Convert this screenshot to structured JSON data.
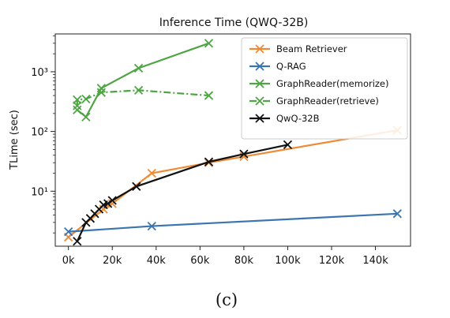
{
  "chart_data": {
    "type": "line",
    "title": "Inference Time (QWQ-32B)",
    "ylabel": "TLime (sec)",
    "xlabel": "",
    "caption": "(c)",
    "xlim": [
      -6000,
      156000
    ],
    "ylim": [
      1.2,
      4300
    ],
    "yscale": "log",
    "grid": false,
    "legend_position": "top-right",
    "x_ticks": [
      0,
      20000,
      40000,
      60000,
      80000,
      100000,
      120000,
      140000
    ],
    "x_tick_labels": [
      "0k",
      "20k",
      "40k",
      "60k",
      "80k",
      "100k",
      "120k",
      "140k"
    ],
    "y_ticks": [
      10,
      100,
      1000
    ],
    "y_tick_labels": [
      "10¹",
      "10²",
      "10³"
    ],
    "series": [
      {
        "name": "Beam Retriever",
        "color": "#ef8a35",
        "dash": "solid",
        "x": [
          0,
          16000,
          20000,
          38000,
          64000,
          80000,
          150000
        ],
        "y": [
          1.7,
          5.0,
          6.2,
          20,
          30,
          38,
          105
        ]
      },
      {
        "name": "Q-RAG",
        "color": "#3b75af",
        "dash": "solid",
        "x": [
          0,
          38000,
          150000
        ],
        "y": [
          2.1,
          2.6,
          4.2
        ]
      },
      {
        "name": "GraphReader(memorize)",
        "color": "#4ea543",
        "dash": "solid",
        "x": [
          4000,
          8000,
          15000,
          32000,
          64000
        ],
        "y": [
          230,
          175,
          530,
          1150,
          3000
        ]
      },
      {
        "name": "GraphReader(retrieve)",
        "color": "#4ea543",
        "dash": "dashdot",
        "x": [
          4000,
          4000,
          8000,
          15000,
          32000,
          64000
        ],
        "y": [
          270,
          340,
          350,
          450,
          490,
          400
        ]
      },
      {
        "name": "QwQ-32B",
        "color": "#111111",
        "dash": "solid",
        "x": [
          4000,
          8000,
          10000,
          12000,
          14000,
          16000,
          18000,
          20000,
          31000,
          64000,
          80000,
          100000
        ],
        "y": [
          1.45,
          3.0,
          3.5,
          4.2,
          5.0,
          5.9,
          6.2,
          7.0,
          12,
          31,
          42,
          60
        ]
      }
    ]
  }
}
